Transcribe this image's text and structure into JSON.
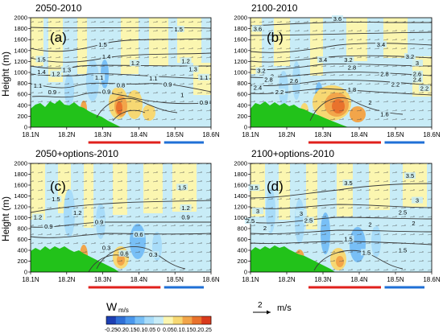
{
  "figure": {
    "y_axis_label": "Height (m)",
    "colorbar_label": "W",
    "colorbar_unit": "m/s",
    "colorbar_ticks": [
      "-0.25",
      "-0.2",
      "-0.15",
      "-0.1",
      "-0.05",
      "0",
      "0.05",
      "0.1",
      "0.15",
      "0.2",
      "0.25"
    ],
    "colorbar_colors": [
      "#1d3fb3",
      "#2f6fd6",
      "#4a97ec",
      "#78bff6",
      "#a8dcf9",
      "#c8ecf7",
      "#fbf6b0",
      "#f7d873",
      "#f2a54a",
      "#e9722c",
      "#d93a1c"
    ],
    "vector_key_value": "2",
    "vector_key_unit": "m/s",
    "colors": {
      "terrain": "#22c21a",
      "background": "#c8ecf7",
      "red_segment": "#e0201c",
      "blue_segment": "#1f6fd6",
      "contour": "#3a3a3a"
    }
  },
  "chart_data": [
    {
      "type": "heatmap",
      "title": "2050-2010",
      "panel_letter": "(a)",
      "ylabel": "Height (m)",
      "x_ticks": [
        "18.1N",
        "18.2N",
        "18.3N",
        "18.4N",
        "18.5N",
        "18.6N"
      ],
      "y_ticks": [
        "0",
        "200",
        "400",
        "600",
        "800",
        "1000",
        "1200",
        "1400",
        "1600",
        "1800",
        "2000"
      ],
      "xlim": [
        18.1,
        18.6
      ],
      "ylim": [
        0,
        2000
      ],
      "contour_labels": [
        {
          "text": "1.5",
          "x": 18.51,
          "y": 1780
        },
        {
          "text": "1.5",
          "x": 18.3,
          "y": 1500
        },
        {
          "text": "1.5",
          "x": 18.13,
          "y": 1230
        },
        {
          "text": "1.4",
          "x": 18.31,
          "y": 1280
        },
        {
          "text": "1.3",
          "x": 18.2,
          "y": 1040
        },
        {
          "text": "1.2",
          "x": 18.17,
          "y": 960
        },
        {
          "text": "1.2",
          "x": 18.39,
          "y": 1160
        },
        {
          "text": "1.2",
          "x": 18.53,
          "y": 1200
        },
        {
          "text": "1.3",
          "x": 18.55,
          "y": 1050
        },
        {
          "text": "1.1",
          "x": 18.58,
          "y": 900
        },
        {
          "text": "1.4",
          "x": 18.13,
          "y": 1000
        },
        {
          "text": "1.1",
          "x": 18.29,
          "y": 900
        },
        {
          "text": "1.1",
          "x": 18.12,
          "y": 750
        },
        {
          "text": "0.9",
          "x": 18.16,
          "y": 630
        },
        {
          "text": "0.9",
          "x": 18.31,
          "y": 640
        },
        {
          "text": "0.8",
          "x": 18.35,
          "y": 760
        },
        {
          "text": "0.9",
          "x": 18.48,
          "y": 770
        },
        {
          "text": "1.1",
          "x": 18.44,
          "y": 880
        },
        {
          "text": "1",
          "x": 18.52,
          "y": 580
        },
        {
          "text": "0.9",
          "x": 18.58,
          "y": 440
        }
      ],
      "underline_segments": [
        {
          "color": "red",
          "x_range": [
            18.26,
            18.46
          ]
        },
        {
          "color": "blue",
          "x_range": [
            18.47,
            18.58
          ]
        }
      ]
    },
    {
      "type": "heatmap",
      "title": "2100-2010",
      "panel_letter": "(b)",
      "ylabel": "",
      "x_ticks": [
        "18.1N",
        "18.2N",
        "18.3N",
        "18.4N",
        "18.5N",
        "18.6N"
      ],
      "y_ticks": [
        "0",
        "200",
        "400",
        "600",
        "800",
        "1000",
        "1200",
        "1400",
        "1600",
        "1800",
        "2000"
      ],
      "xlim": [
        18.1,
        18.6
      ],
      "ylim": [
        0,
        2000
      ],
      "contour_labels": [
        {
          "text": "3.6",
          "x": 18.34,
          "y": 1970
        },
        {
          "text": "3.6",
          "x": 18.12,
          "y": 1790
        },
        {
          "text": "3.4",
          "x": 18.46,
          "y": 1500
        },
        {
          "text": "3.2",
          "x": 18.54,
          "y": 1280
        },
        {
          "text": "3",
          "x": 18.56,
          "y": 1160
        },
        {
          "text": "3.4",
          "x": 18.3,
          "y": 1220
        },
        {
          "text": "3.2",
          "x": 18.37,
          "y": 1220
        },
        {
          "text": "2.8",
          "x": 18.38,
          "y": 1080
        },
        {
          "text": "2.8",
          "x": 18.47,
          "y": 960
        },
        {
          "text": "2.6",
          "x": 18.56,
          "y": 960
        },
        {
          "text": "2.4",
          "x": 18.56,
          "y": 860
        },
        {
          "text": "2.2",
          "x": 18.58,
          "y": 700
        },
        {
          "text": "3.2",
          "x": 18.13,
          "y": 1020
        },
        {
          "text": "3",
          "x": 18.16,
          "y": 920
        },
        {
          "text": "2.8",
          "x": 18.15,
          "y": 860
        },
        {
          "text": "2.6",
          "x": 18.22,
          "y": 840
        },
        {
          "text": "2.4",
          "x": 18.12,
          "y": 710
        },
        {
          "text": "2.2",
          "x": 18.18,
          "y": 630
        },
        {
          "text": "1.8",
          "x": 18.38,
          "y": 680
        },
        {
          "text": "2",
          "x": 18.43,
          "y": 440
        },
        {
          "text": "1.6",
          "x": 18.47,
          "y": 230
        },
        {
          "text": "2.2",
          "x": 18.5,
          "y": 770
        }
      ],
      "underline_segments": [
        {
          "color": "red",
          "x_range": [
            18.26,
            18.46
          ]
        },
        {
          "color": "blue",
          "x_range": [
            18.47,
            18.58
          ]
        }
      ]
    },
    {
      "type": "heatmap",
      "title": "2050+options-2010",
      "panel_letter": "(c)",
      "ylabel": "Height (m)",
      "x_ticks": [
        "18.1N",
        "18.2N",
        "18.3N",
        "18.4N",
        "18.5N",
        "18.6N"
      ],
      "y_ticks": [
        "0",
        "200",
        "400",
        "600",
        "800",
        "1000",
        "1200",
        "1400",
        "1600",
        "1800",
        "2000"
      ],
      "xlim": [
        18.1,
        18.6
      ],
      "ylim": [
        0,
        2000
      ],
      "contour_labels": [
        {
          "text": "1.5",
          "x": 18.52,
          "y": 1550
        },
        {
          "text": "1.5",
          "x": 18.17,
          "y": 1330
        },
        {
          "text": "1.2",
          "x": 18.12,
          "y": 1000
        },
        {
          "text": "1.2",
          "x": 18.23,
          "y": 1080
        },
        {
          "text": "1.2",
          "x": 18.53,
          "y": 1170
        },
        {
          "text": "0.9",
          "x": 18.53,
          "y": 1000
        },
        {
          "text": "0.9",
          "x": 18.15,
          "y": 830
        },
        {
          "text": "0.9",
          "x": 18.29,
          "y": 910
        },
        {
          "text": "0.6",
          "x": 18.4,
          "y": 680
        },
        {
          "text": "0.3",
          "x": 18.31,
          "y": 440
        },
        {
          "text": "0.6",
          "x": 18.36,
          "y": 330
        },
        {
          "text": "0.3",
          "x": 18.44,
          "y": 310
        }
      ],
      "underline_segments": [
        {
          "color": "red",
          "x_range": [
            18.26,
            18.46
          ]
        },
        {
          "color": "blue",
          "x_range": [
            18.47,
            18.58
          ]
        }
      ]
    },
    {
      "type": "heatmap",
      "title": "2100+options-2010",
      "panel_letter": "(d)",
      "ylabel": "",
      "x_ticks": [
        "18.1N",
        "18.2N",
        "18.3N",
        "18.4N",
        "18.5N",
        "18.6N"
      ],
      "y_ticks": [
        "0",
        "200",
        "400",
        "600",
        "800",
        "1000",
        "1200",
        "1400",
        "1600",
        "1800",
        "2000"
      ],
      "xlim": [
        18.1,
        18.6
      ],
      "ylim": [
        0,
        2000
      ],
      "contour_labels": [
        {
          "text": "3.5",
          "x": 18.11,
          "y": 1540
        },
        {
          "text": "3.5",
          "x": 18.37,
          "y": 1630
        },
        {
          "text": "3.5",
          "x": 18.54,
          "y": 1760
        },
        {
          "text": "3",
          "x": 18.56,
          "y": 1310
        },
        {
          "text": "3",
          "x": 18.12,
          "y": 1110
        },
        {
          "text": "3",
          "x": 18.24,
          "y": 1070
        },
        {
          "text": "2.5",
          "x": 18.52,
          "y": 1090
        },
        {
          "text": "2.5",
          "x": 18.1,
          "y": 930
        },
        {
          "text": "2.5",
          "x": 18.26,
          "y": 940
        },
        {
          "text": "2",
          "x": 18.14,
          "y": 800
        },
        {
          "text": "2",
          "x": 18.43,
          "y": 870
        },
        {
          "text": "2",
          "x": 18.55,
          "y": 890
        },
        {
          "text": "1.5",
          "x": 18.37,
          "y": 600
        },
        {
          "text": "1.5",
          "x": 18.42,
          "y": 350
        },
        {
          "text": "1.5",
          "x": 18.52,
          "y": 390
        }
      ],
      "underline_segments": [
        {
          "color": "red",
          "x_range": [
            18.26,
            18.46
          ]
        },
        {
          "color": "blue",
          "x_range": [
            18.47,
            18.58
          ]
        }
      ]
    }
  ]
}
